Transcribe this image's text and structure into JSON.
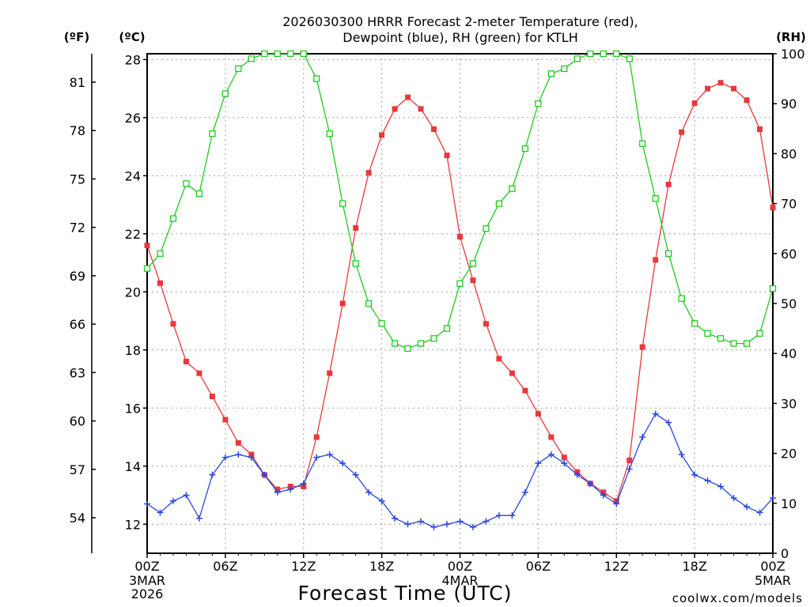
{
  "colors": {
    "temperature": "#e8383c",
    "dewpoint": "#2a48e0",
    "rh": "#1ecb1e",
    "grid": "#a0a0a0",
    "watermark": "#e8383c"
  },
  "chart_data": {
    "type": "line",
    "title_line1": "2026030300 HRRR Forecast 2-meter Temperature (red),",
    "title_line2": "Dewpoint (blue), RH (green) for KTLH",
    "xlabel": "Forecast Time (UTC)",
    "watermark": "coolwx.com/models",
    "left_axis_unit_f": "(ºF)",
    "left_axis_unit_c": "(ºC)",
    "right_axis_unit": "(RH)",
    "ylim_c": [
      11,
      28.2
    ],
    "ylim_rh": [
      0,
      100
    ],
    "xlim": [
      0,
      48
    ],
    "grid": true,
    "celsius_ticks": [
      12,
      14,
      16,
      18,
      20,
      22,
      24,
      26,
      28
    ],
    "fahrenheit_ticks": [
      54,
      57,
      60,
      63,
      66,
      69,
      72,
      75,
      78,
      81
    ],
    "rh_ticks": [
      0,
      10,
      20,
      30,
      40,
      50,
      60,
      70,
      80,
      90,
      100
    ],
    "x_ticks": [
      {
        "pos": 0,
        "label": "00Z",
        "sub1": "3MAR",
        "sub2": "2026"
      },
      {
        "pos": 6,
        "label": "06Z",
        "sub1": "",
        "sub2": ""
      },
      {
        "pos": 12,
        "label": "12Z",
        "sub1": "",
        "sub2": ""
      },
      {
        "pos": 18,
        "label": "18Z",
        "sub1": "",
        "sub2": ""
      },
      {
        "pos": 24,
        "label": "00Z",
        "sub1": "4MAR",
        "sub2": ""
      },
      {
        "pos": 30,
        "label": "06Z",
        "sub1": "",
        "sub2": ""
      },
      {
        "pos": 36,
        "label": "12Z",
        "sub1": "",
        "sub2": ""
      },
      {
        "pos": 42,
        "label": "18Z",
        "sub1": "",
        "sub2": ""
      },
      {
        "pos": 48,
        "label": "00Z",
        "sub1": "5MAR",
        "sub2": ""
      }
    ],
    "x": [
      0,
      1,
      2,
      3,
      4,
      5,
      6,
      7,
      8,
      9,
      10,
      11,
      12,
      13,
      14,
      15,
      16,
      17,
      18,
      19,
      20,
      21,
      22,
      23,
      24,
      25,
      26,
      27,
      28,
      29,
      30,
      31,
      32,
      33,
      34,
      35,
      36,
      37,
      38,
      39,
      40,
      41,
      42,
      43,
      44,
      45,
      46,
      47,
      48
    ],
    "series": [
      {
        "name": "Temperature",
        "units": "C",
        "marker": "filled-square",
        "values": [
          21.6,
          20.3,
          18.9,
          17.6,
          17.2,
          16.4,
          15.6,
          14.8,
          14.4,
          13.7,
          13.2,
          13.3,
          13.3,
          15.0,
          17.2,
          19.6,
          22.2,
          24.1,
          25.4,
          26.3,
          26.7,
          26.3,
          25.6,
          24.7,
          21.9,
          20.4,
          18.9,
          17.7,
          17.2,
          16.6,
          15.8,
          15.0,
          14.3,
          13.8,
          13.4,
          13.1,
          12.8,
          14.2,
          18.1,
          21.1,
          23.7,
          25.5,
          26.5,
          27.0,
          27.2,
          27.0,
          26.6,
          25.6,
          22.9
        ]
      },
      {
        "name": "Dewpoint",
        "units": "C",
        "marker": "plus",
        "values": [
          12.7,
          12.4,
          12.8,
          13.0,
          12.2,
          13.7,
          14.3,
          14.4,
          14.3,
          13.7,
          13.1,
          13.2,
          13.4,
          14.3,
          14.4,
          14.1,
          13.7,
          13.1,
          12.8,
          12.2,
          12.0,
          12.1,
          11.9,
          12.0,
          12.1,
          11.9,
          12.1,
          12.3,
          12.3,
          13.1,
          14.1,
          14.4,
          14.1,
          13.7,
          13.4,
          13.0,
          12.7,
          13.9,
          15.0,
          15.8,
          15.5,
          14.4,
          13.7,
          13.5,
          13.3,
          12.9,
          12.6,
          12.4,
          12.9
        ]
      },
      {
        "name": "RH",
        "units": "%",
        "marker": "open-square",
        "values": [
          57,
          60,
          67,
          74,
          72,
          84,
          92,
          97,
          99,
          100,
          100,
          100,
          100,
          95,
          84,
          70,
          58,
          50,
          46,
          42,
          41,
          42,
          43,
          45,
          54,
          58,
          65,
          70,
          73,
          81,
          90,
          96,
          97,
          99,
          100,
          100,
          100,
          99,
          82,
          71,
          60,
          51,
          46,
          44,
          43,
          42,
          42,
          44,
          53
        ]
      }
    ]
  }
}
